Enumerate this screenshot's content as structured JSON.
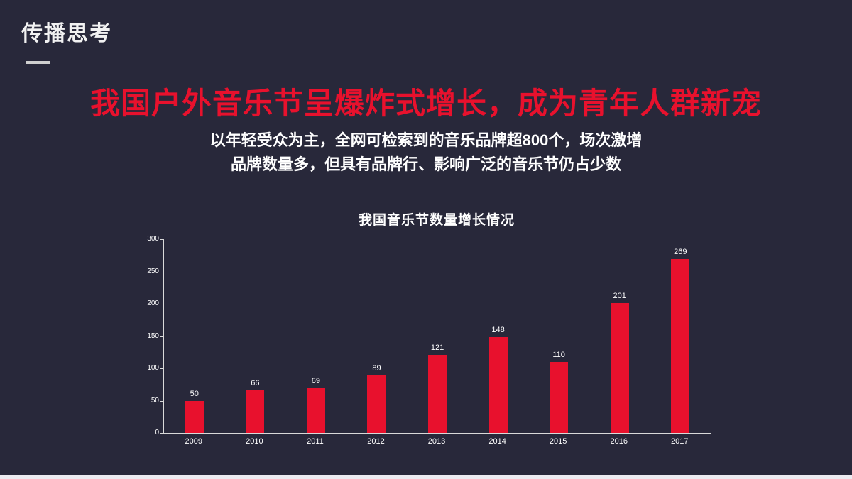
{
  "slide": {
    "section_title": "传播思考",
    "headline": "我国户外音乐节呈爆炸式增长，成为青年人群新宠",
    "subtitle_lines": [
      "以年轻受众为主，全网可检索到的音乐品牌超800个，场次激增",
      "品牌数量多，但具有品牌行、影响广泛的音乐节仍占少数"
    ]
  },
  "chart_data": {
    "type": "bar",
    "title": "我国音乐节数量增长情况",
    "categories": [
      "2009",
      "2010",
      "2011",
      "2012",
      "2013",
      "2014",
      "2015",
      "2016",
      "2017"
    ],
    "values": [
      50,
      66,
      69,
      89,
      121,
      148,
      110,
      201,
      269
    ],
    "xlabel": "",
    "ylabel": "",
    "ylim": [
      0,
      300
    ],
    "yticks": [
      0,
      50,
      100,
      150,
      200,
      250,
      300
    ],
    "grid": false,
    "legend": "none",
    "bar_color": "#e8112d"
  },
  "colors": {
    "background": "#28283a",
    "accent": "#e8112d",
    "text": "#ffffff",
    "axis": "#d9d9d9"
  }
}
